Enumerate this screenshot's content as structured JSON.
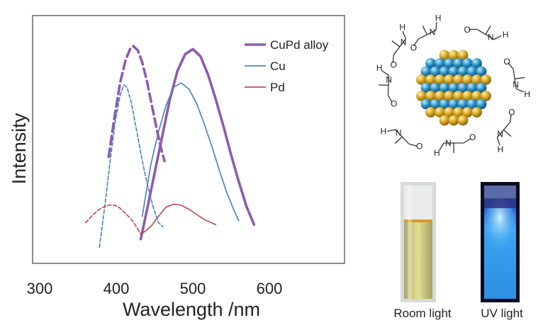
{
  "chart_data": {
    "type": "line",
    "title": "",
    "xlabel": "Wavelength /nm",
    "ylabel": "Intensity",
    "xlim": [
      300,
      650
    ],
    "ylim": [
      0,
      1
    ],
    "xticks": [
      300,
      400,
      500,
      600
    ],
    "grid": false,
    "legend": "top-right",
    "series": [
      {
        "name": "CuPd alloy",
        "kind": "emission",
        "style": "solid",
        "color": "#8E5BAF",
        "x": [
          432,
          440,
          450,
          460,
          470,
          480,
          490,
          500,
          510,
          520,
          530,
          540,
          550,
          560,
          570,
          580
        ],
        "y": [
          0.06,
          0.2,
          0.38,
          0.56,
          0.74,
          0.88,
          0.96,
          0.985,
          0.95,
          0.86,
          0.74,
          0.61,
          0.47,
          0.34,
          0.22,
          0.13
        ]
      },
      {
        "name": "Cu",
        "kind": "emission",
        "style": "solid",
        "color": "#4E85BD",
        "x": [
          434,
          445,
          455,
          465,
          475,
          485,
          495,
          505,
          515,
          525,
          535,
          545,
          555,
          560
        ],
        "y": [
          0.17,
          0.42,
          0.58,
          0.71,
          0.8,
          0.82,
          0.79,
          0.72,
          0.62,
          0.51,
          0.39,
          0.28,
          0.19,
          0.15
        ]
      },
      {
        "name": "Pd",
        "kind": "emission",
        "style": "solid",
        "color": "#C0504D",
        "x": [
          435,
          445,
          455,
          465,
          475,
          485,
          495,
          505,
          515,
          530
        ],
        "y": [
          0.09,
          0.12,
          0.17,
          0.215,
          0.23,
          0.225,
          0.205,
          0.18,
          0.155,
          0.13
        ]
      },
      {
        "kind": "excitation",
        "style": "dashed",
        "color": "#8E5BAF",
        "x": [
          390,
          398,
          405,
          412,
          418,
          422,
          428,
          434,
          440,
          446,
          452,
          458,
          463
        ],
        "y": [
          0.46,
          0.66,
          0.82,
          0.93,
          0.985,
          1.0,
          0.98,
          0.92,
          0.83,
          0.72,
          0.61,
          0.51,
          0.44
        ]
      },
      {
        "kind": "excitation",
        "style": "dashed",
        "color": "#4E85BD",
        "x": [
          378,
          385,
          392,
          399,
          405,
          410,
          414,
          420,
          427,
          434,
          441,
          448,
          455,
          461
        ],
        "y": [
          0.02,
          0.22,
          0.44,
          0.64,
          0.76,
          0.81,
          0.8,
          0.72,
          0.58,
          0.44,
          0.32,
          0.22,
          0.14,
          0.12
        ]
      },
      {
        "kind": "excitation",
        "style": "dashed",
        "color": "#C0504D",
        "x": [
          360,
          370,
          380,
          390,
          398,
          405,
          412,
          420,
          428,
          433
        ],
        "y": [
          0.14,
          0.18,
          0.21,
          0.225,
          0.225,
          0.21,
          0.185,
          0.155,
          0.11,
          0.08
        ]
      }
    ]
  },
  "captions": {
    "room": "Room light",
    "uv": "UV light"
  },
  "molecule": {
    "atoms": [
      "N",
      "O",
      "H"
    ],
    "cluster_colors": [
      "#D8A520",
      "#2B93C8"
    ]
  }
}
